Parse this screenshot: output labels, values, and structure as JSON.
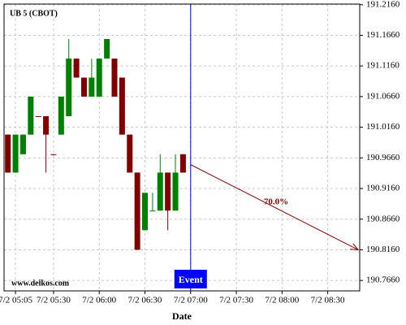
{
  "chart_data": {
    "type": "candlestick",
    "title": "UB 5 (CBOT)",
    "source": "www.delkos.com",
    "x_label": "Date",
    "x": [
      300,
      305,
      310,
      315,
      320,
      325,
      330,
      335,
      340,
      345,
      350,
      355,
      360,
      365,
      370,
      375,
      380,
      385,
      390,
      395,
      400,
      405,
      410,
      415
    ],
    "open": [
      191.004,
      190.942,
      190.972,
      191.004,
      191.034,
      191.034,
      190.972,
      191.004,
      191.034,
      191.128,
      191.097,
      191.066,
      191.066,
      191.128,
      191.128,
      191.097,
      191.004,
      190.942,
      190.848,
      190.88,
      190.88,
      190.942,
      190.88,
      190.972
    ],
    "high": [
      191.004,
      191.004,
      191.004,
      191.066,
      191.034,
      191.034,
      190.972,
      191.066,
      191.16,
      191.128,
      191.097,
      191.128,
      191.128,
      191.16,
      191.128,
      191.097,
      191.004,
      190.942,
      190.909,
      190.909,
      190.972,
      190.942,
      190.972,
      190.972
    ],
    "low": [
      190.942,
      190.942,
      190.972,
      191.004,
      191.033,
      190.942,
      190.97,
      191.004,
      191.034,
      191.097,
      191.066,
      191.066,
      191.066,
      191.128,
      191.066,
      191.004,
      190.942,
      190.816,
      190.848,
      190.88,
      190.88,
      190.848,
      190.88,
      190.942
    ],
    "close": [
      190.942,
      191.004,
      191.004,
      191.066,
      191.033,
      191.004,
      190.971,
      191.066,
      191.128,
      191.097,
      191.066,
      191.097,
      191.128,
      191.16,
      191.066,
      191.004,
      190.942,
      190.816,
      190.909,
      190.88,
      190.942,
      190.88,
      190.942,
      190.942
    ],
    "up_color": "#008000",
    "down_color": "#800000",
    "xlim": [
      297.5,
      531
    ],
    "ylim": [
      190.749,
      191.217
    ],
    "xticks": [
      {
        "value": 305,
        "label": "7/2 05:05"
      },
      {
        "value": 330,
        "label": "7/2 05:30"
      },
      {
        "value": 360,
        "label": "7/2 06:00"
      },
      {
        "value": 390,
        "label": "7/2 06:30"
      },
      {
        "value": 420,
        "label": "7/2 07:00"
      },
      {
        "value": 450,
        "label": "7/2 07:30"
      },
      {
        "value": 480,
        "label": "7/2 08:00"
      },
      {
        "value": 510,
        "label": "7/2 08:30"
      }
    ],
    "yticks": [
      {
        "value": 190.766,
        "label": "190.7660"
      },
      {
        "value": 190.816,
        "label": "190.8160"
      },
      {
        "value": 190.866,
        "label": "190.8660"
      },
      {
        "value": 190.916,
        "label": "190.9160"
      },
      {
        "value": 190.966,
        "label": "190.9660"
      },
      {
        "value": 191.016,
        "label": "191.0160"
      },
      {
        "value": 191.066,
        "label": "191.0660"
      },
      {
        "value": 191.116,
        "label": "191.1160"
      },
      {
        "value": 191.166,
        "label": "191.1660"
      },
      {
        "value": 191.216,
        "label": "191.2160"
      }
    ],
    "grid": true,
    "event": {
      "x": 420,
      "label": "Event",
      "color": "#0000ff"
    },
    "arrow": {
      "x": [
        420,
        530
      ],
      "y": [
        190.955,
        190.816
      ],
      "label": "70.0%",
      "color": "#800000"
    }
  }
}
